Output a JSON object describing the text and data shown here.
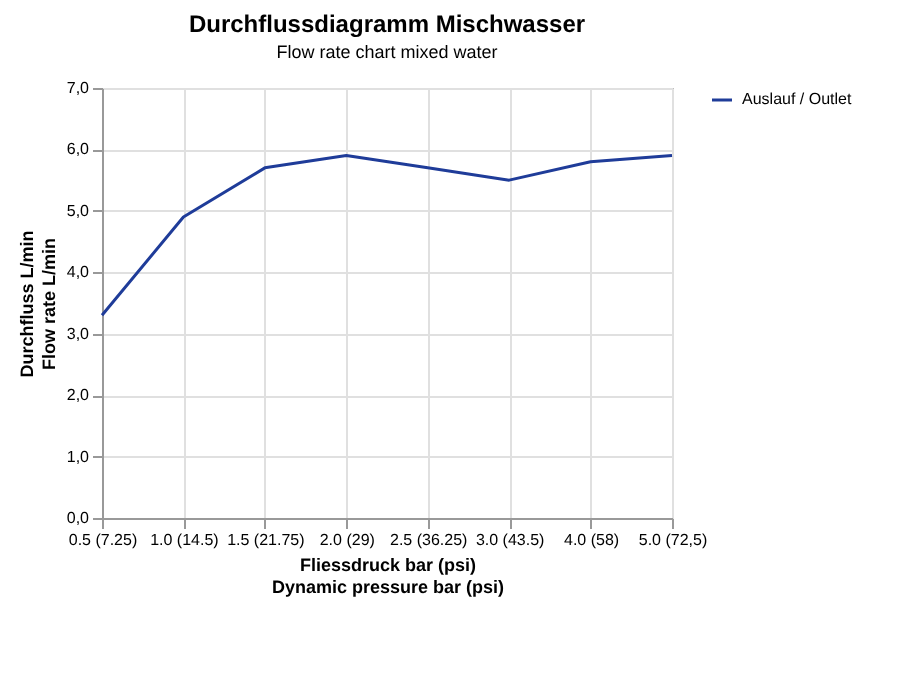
{
  "chart_data": {
    "type": "line",
    "title": "Durchflussdiagramm Mischwasser",
    "subtitle": "Flow rate chart mixed water",
    "xlabel": "Fliessdruck bar (psi)\nDynamic pressure bar (psi)",
    "ylabel": "Durchfluss L/min\nFlow rate L/min",
    "categories": [
      "0.5 (7.25)",
      "1.0 (14.5)",
      "1.5 (21.75)",
      "2.0 (29)",
      "2.5 (36.25)",
      "3.0 (43.5)",
      "4.0 (58)",
      "5.0 (72,5)"
    ],
    "series": [
      {
        "name": "Auslauf / Outlet",
        "color": "#1f3c99",
        "values": [
          3.3,
          4.9,
          5.7,
          5.9,
          5.7,
          5.5,
          5.8,
          5.9
        ]
      }
    ],
    "ylim": [
      0,
      7
    ],
    "yticks": [
      {
        "value": 0,
        "label": "0,0"
      },
      {
        "value": 1,
        "label": "1,0"
      },
      {
        "value": 2,
        "label": "2,0"
      },
      {
        "value": 3,
        "label": "3,0"
      },
      {
        "value": 4,
        "label": "4,0"
      },
      {
        "value": 5,
        "label": "5,0"
      },
      {
        "value": 6,
        "label": "6,0"
      },
      {
        "value": 7,
        "label": "7,0"
      }
    ],
    "grid": true,
    "legend": "right",
    "marker": "none",
    "line_style": "solid"
  }
}
